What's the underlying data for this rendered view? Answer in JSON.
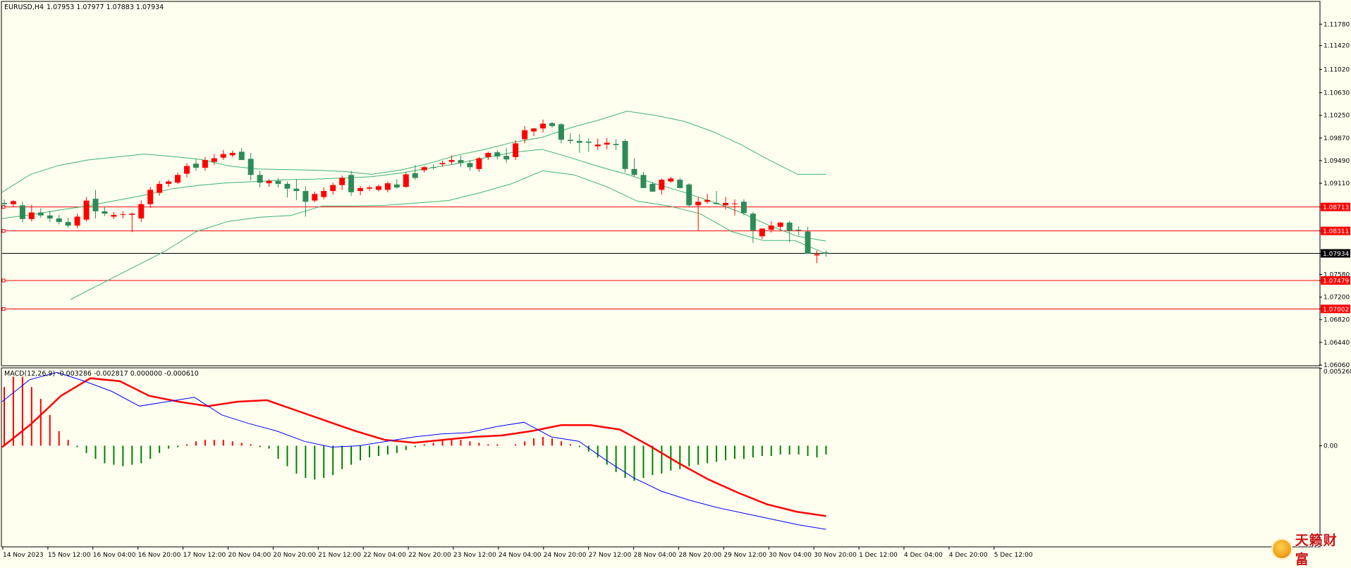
{
  "header": {
    "symbol": "EURUSD,H4",
    "ohlc": "1.07953 1.07977 1.07883 1.07934"
  },
  "macd_header": "MACD(12,26,9) -0.003286 -0.002817 0.000000 -0.000610",
  "colors": {
    "background": "#fffff0",
    "bull": "#ff0000",
    "bear": "#2e8b57",
    "band": "#3cb371",
    "level": "#ff0000",
    "macd_line": "#0000ff",
    "signal_line": "#ff0000",
    "hist_pos": "#ff0000",
    "hist_neg": "#008000"
  },
  "logo_text": "天籁财富",
  "chart_data": [
    {
      "type": "candlestick",
      "symbol": "EURUSD",
      "timeframe": "H4",
      "y_ticks": [
        "1.11780",
        "1.11420",
        "1.11020",
        "1.10630",
        "1.10250",
        "1.09870",
        "1.09490",
        "1.09110",
        "1.08713",
        "1.08311",
        "1.07934",
        "1.07580",
        "1.07479",
        "1.07200",
        "1.07002",
        "1.06820",
        "1.06440",
        "1.06060"
      ],
      "y_range": [
        1.0606,
        1.1215
      ],
      "x_labels": [
        "14 Nov 2023",
        "15 Nov 12:00",
        "16 Nov 04:00",
        "16 Nov 20:00",
        "17 Nov 12:00",
        "20 Nov 04:00",
        "20 Nov 20:00",
        "21 Nov 12:00",
        "22 Nov 04:00",
        "22 Nov 20:00",
        "23 Nov 12:00",
        "24 Nov 04:00",
        "24 Nov 20:00",
        "27 Nov 12:00",
        "28 Nov 04:00",
        "28 Nov 20:00",
        "29 Nov 12:00",
        "30 Nov 04:00",
        "30 Nov 20:00",
        "1 Dec 12:00",
        "4 Dec 04:00",
        "4 Dec 20:00",
        "5 Dec 12:00"
      ],
      "candles": [
        [
          1.0878,
          1.0884,
          1.0872,
          1.0876
        ],
        [
          1.0876,
          1.0883,
          1.0871,
          1.0881
        ],
        [
          1.0874,
          1.088,
          1.0846,
          1.0851
        ],
        [
          1.0851,
          1.0875,
          1.0847,
          1.0862
        ],
        [
          1.0862,
          1.0869,
          1.0853,
          1.0857
        ],
        [
          1.0857,
          1.0865,
          1.0846,
          1.0852
        ],
        [
          1.0852,
          1.0858,
          1.0842,
          1.0846
        ],
        [
          1.0846,
          1.0853,
          1.0836,
          1.084
        ],
        [
          1.084,
          1.086,
          1.0836,
          1.0855
        ],
        [
          1.085,
          1.0888,
          1.0847,
          1.0882
        ],
        [
          1.0885,
          1.09,
          1.0852,
          1.0864
        ],
        [
          1.0864,
          1.0872,
          1.0856,
          1.086
        ],
        [
          1.0855,
          1.0863,
          1.0851,
          1.0858
        ],
        [
          1.0858,
          1.0864,
          1.0852,
          1.0859
        ],
        [
          1.0858,
          1.0862,
          1.0829,
          1.086
        ],
        [
          1.0852,
          1.0882,
          1.0846,
          1.0876
        ],
        [
          1.0876,
          1.0905,
          1.087,
          1.09
        ],
        [
          1.0895,
          1.0915,
          1.089,
          1.091
        ],
        [
          1.091,
          1.0917,
          1.0905,
          1.0914
        ],
        [
          1.0912,
          1.0929,
          1.091,
          1.0925
        ],
        [
          1.0927,
          1.0945,
          1.0921,
          1.094
        ],
        [
          1.0944,
          1.0951,
          1.0932,
          1.0937
        ],
        [
          1.0937,
          1.0955,
          1.0932,
          1.095
        ],
        [
          1.0947,
          1.096,
          1.0942,
          1.0953
        ],
        [
          1.0954,
          1.0967,
          1.095,
          1.096
        ],
        [
          1.0958,
          1.0966,
          1.0955,
          1.0962
        ],
        [
          1.0964,
          1.097,
          1.0952,
          1.095
        ],
        [
          1.0952,
          1.0962,
          1.0916,
          1.0925
        ],
        [
          1.0925,
          1.0932,
          1.0904,
          1.0912
        ],
        [
          1.0911,
          1.0918,
          1.0905,
          1.0915
        ],
        [
          1.0915,
          1.092,
          1.0904,
          1.091
        ],
        [
          1.091,
          1.0914,
          1.0887,
          1.0902
        ],
        [
          1.0902,
          1.0918,
          1.0883,
          1.0898
        ],
        [
          1.0898,
          1.0906,
          1.0855,
          1.088
        ],
        [
          1.0882,
          1.0897,
          1.0879,
          1.0893
        ],
        [
          1.0888,
          1.0904,
          1.0884,
          1.0898
        ],
        [
          1.0898,
          1.0912,
          1.0892,
          1.0908
        ],
        [
          1.0908,
          1.0924,
          1.09,
          1.092
        ],
        [
          1.0925,
          1.0932,
          1.089,
          1.0896
        ],
        [
          1.0898,
          1.0906,
          1.0891,
          1.0903
        ],
        [
          1.0902,
          1.0907,
          1.0898,
          1.0904
        ],
        [
          1.09,
          1.0909,
          1.0897,
          1.0906
        ],
        [
          1.09,
          1.0914,
          1.0896,
          1.0911
        ],
        [
          1.0909,
          1.0918,
          1.0902,
          1.0904
        ],
        [
          1.0905,
          1.093,
          1.0903,
          1.0926
        ],
        [
          1.0928,
          1.0942,
          1.0917,
          1.092
        ],
        [
          1.0933,
          1.094,
          1.0929,
          1.0938
        ],
        [
          1.0938,
          1.0943,
          1.0934,
          1.0937
        ],
        [
          1.0943,
          1.0949,
          1.0939,
          1.0945
        ],
        [
          1.0947,
          1.0958,
          1.0942,
          1.095
        ],
        [
          1.095,
          1.0958,
          1.0938,
          1.0945
        ],
        [
          1.0945,
          1.095,
          1.0932,
          1.0938
        ],
        [
          1.0935,
          1.0955,
          1.093,
          1.0953
        ],
        [
          1.0955,
          1.0964,
          1.095,
          1.0962
        ],
        [
          1.0963,
          1.0966,
          1.0951,
          1.0956
        ],
        [
          1.0957,
          1.097,
          1.0945,
          1.0951
        ],
        [
          1.0955,
          1.0983,
          1.095,
          1.0978
        ],
        [
          1.0985,
          1.1007,
          1.0978,
          1.1
        ],
        [
          1.0998,
          1.1004,
          1.099,
          1.1003
        ],
        [
          1.1003,
          1.1018,
          1.0996,
          1.1011
        ],
        [
          1.1012,
          1.1014,
          1.1004,
          1.1007
        ],
        [
          1.101,
          1.1012,
          1.0978,
          1.0984
        ],
        [
          1.0984,
          1.0995,
          1.0977,
          1.0982
        ],
        [
          1.0982,
          1.0993,
          1.0962,
          1.0979
        ],
        [
          1.0981,
          1.0986,
          1.0964,
          1.0979
        ],
        [
          1.0973,
          1.0986,
          1.0967,
          1.0976
        ],
        [
          1.0976,
          1.0987,
          1.0968,
          1.0979
        ],
        [
          1.0977,
          1.0985,
          1.0967,
          1.0975
        ],
        [
          1.0982,
          1.0985,
          1.0929,
          1.0935
        ],
        [
          1.0935,
          1.0953,
          1.0922,
          1.0925
        ],
        [
          1.0925,
          1.093,
          1.0906,
          1.0903
        ],
        [
          1.091,
          1.0913,
          1.0897,
          1.0897
        ],
        [
          1.09,
          1.0919,
          1.0892,
          1.0917
        ],
        [
          1.0914,
          1.0922,
          1.0912,
          1.0919
        ],
        [
          1.0917,
          1.092,
          1.0902,
          1.0903
        ],
        [
          1.0909,
          1.0911,
          1.0872,
          1.0874
        ],
        [
          1.0874,
          1.0888,
          1.0832,
          1.088
        ],
        [
          1.088,
          1.0893,
          1.0877,
          1.0883
        ],
        [
          1.0878,
          1.0898,
          1.0877,
          1.0876
        ],
        [
          1.0874,
          1.0888,
          1.0867,
          1.0878
        ],
        [
          1.0876,
          1.0884,
          1.0857,
          1.0877
        ],
        [
          1.088,
          1.0884,
          1.0857,
          1.0861
        ],
        [
          1.086,
          1.0863,
          1.0811,
          1.0832
        ],
        [
          1.0822,
          1.0835,
          1.0817,
          1.0835
        ],
        [
          1.0833,
          1.0847,
          1.0828,
          1.084
        ],
        [
          1.0838,
          1.0846,
          1.0832,
          1.0845
        ],
        [
          1.0845,
          1.0848,
          1.0812,
          1.0831
        ],
        [
          1.0833,
          1.0839,
          1.0824,
          1.0832
        ],
        [
          1.083,
          1.0838,
          1.0797,
          1.0793
        ],
        [
          1.079,
          1.0798,
          1.0777,
          1.0792
        ],
        [
          1.0795,
          1.0798,
          1.0788,
          1.0793
        ]
      ],
      "bollinger_upper": [
        1.0896,
        1.0926,
        1.0941,
        1.095,
        1.0955,
        1.096,
        1.0956,
        1.0951,
        1.094,
        1.0935,
        1.0934,
        1.0933,
        1.0931,
        1.0926,
        1.0933,
        1.0944,
        1.0958,
        1.0968,
        1.098,
        1.0988,
        1.1004,
        1.1017,
        1.1032,
        1.1025,
        1.1015,
        1.0998,
        1.0976,
        1.095,
        1.0926,
        1.0926
      ],
      "bollinger_middle": [
        1.0852,
        1.0858,
        1.0866,
        1.0873,
        1.0882,
        1.0891,
        1.0902,
        1.0908,
        1.0912,
        1.0914,
        1.0917,
        1.0918,
        1.092,
        1.0922,
        1.0928,
        1.0936,
        1.0944,
        1.0954,
        1.0963,
        1.0968,
        1.0954,
        1.0939,
        1.0926,
        1.091,
        1.0896,
        1.088,
        1.0862,
        1.084,
        1.0822,
        1.0814
      ],
      "bollinger_lower": [
        1.0716,
        1.0743,
        1.077,
        1.0797,
        1.083,
        1.0847,
        1.0854,
        1.0857,
        1.0873,
        1.0873,
        1.0874,
        1.0878,
        1.0882,
        1.0895,
        1.091,
        1.0932,
        1.0925,
        1.0906,
        1.0881,
        1.0873,
        1.086,
        1.083,
        1.0815,
        1.0815,
        1.0793
      ],
      "level_lines": [
        1.08713,
        1.08311,
        1.07479,
        1.07002
      ],
      "current_price": 1.07934
    },
    {
      "type": "macd",
      "params": "12,26,9",
      "y_ticks": [
        "0.005268",
        "0.00"
      ],
      "y_range": [
        -0.00685,
        0.00526
      ],
      "macd": [
        0.003,
        0.0045,
        0.005,
        0.0044,
        0.0037,
        0.0027,
        0.003,
        0.0033,
        0.0021,
        0.0015,
        0.001,
        0.0003,
        -0.0001,
        0.0,
        0.0003,
        0.0006,
        0.0008,
        0.0009,
        0.0013,
        0.0016,
        0.0006,
        0.0003,
        -0.001,
        -0.0022,
        -0.0031,
        -0.0037,
        -0.0042,
        -0.0046,
        -0.005,
        -0.0054,
        -0.0057
      ],
      "signal": [
        -0.0001,
        0.0015,
        0.0034,
        0.0046,
        0.0044,
        0.0034,
        0.003,
        0.0027,
        0.003,
        0.0031,
        0.0024,
        0.0017,
        0.001,
        0.0004,
        0.0002,
        0.0004,
        0.0006,
        0.0007,
        0.001,
        0.0014,
        0.0014,
        0.0011,
        0.0,
        -0.0012,
        -0.0023,
        -0.0032,
        -0.004,
        -0.0045,
        -0.0048
      ],
      "histogram": [
        0.004,
        0.0047,
        0.0047,
        0.004,
        0.0032,
        0.0021,
        0.001,
        0.0004,
        -0.0001,
        -0.0005,
        -0.0009,
        -0.0012,
        -0.0013,
        -0.0014,
        -0.0013,
        -0.0012,
        -0.0009,
        -0.0005,
        -0.0002,
        -0.0001,
        0.0001,
        0.0003,
        0.0004,
        0.0004,
        0.0004,
        0.0003,
        0.0002,
        0.0001,
        -0.0001,
        -0.0002,
        -0.0009,
        -0.0014,
        -0.0019,
        -0.0022,
        -0.0023,
        -0.0022,
        -0.002,
        -0.0016,
        -0.0013,
        -0.001,
        -0.0008,
        -0.0007,
        -0.0006,
        -0.0005,
        -0.0003,
        -0.0001,
        0.0001,
        0.0002,
        0.0004,
        0.0005,
        0.0004,
        0.0003,
        0.0002,
        0.0001,
        0.0001,
        0.0,
        0.0001,
        0.0003,
        0.0005,
        0.0006,
        0.0005,
        0.0003,
        0.0001,
        -0.0001,
        -0.0004,
        -0.0008,
        -0.0013,
        -0.0018,
        -0.0022,
        -0.0024,
        -0.0022,
        -0.002,
        -0.0019,
        -0.0017,
        -0.0016,
        -0.0014,
        -0.0013,
        -0.0012,
        -0.0011,
        -0.001,
        -0.0009,
        -0.0009,
        -0.0008,
        -0.0007,
        -0.0007,
        -0.0006,
        -0.0006,
        -0.0006,
        -0.0007,
        -0.0008,
        -0.0006
      ]
    }
  ]
}
